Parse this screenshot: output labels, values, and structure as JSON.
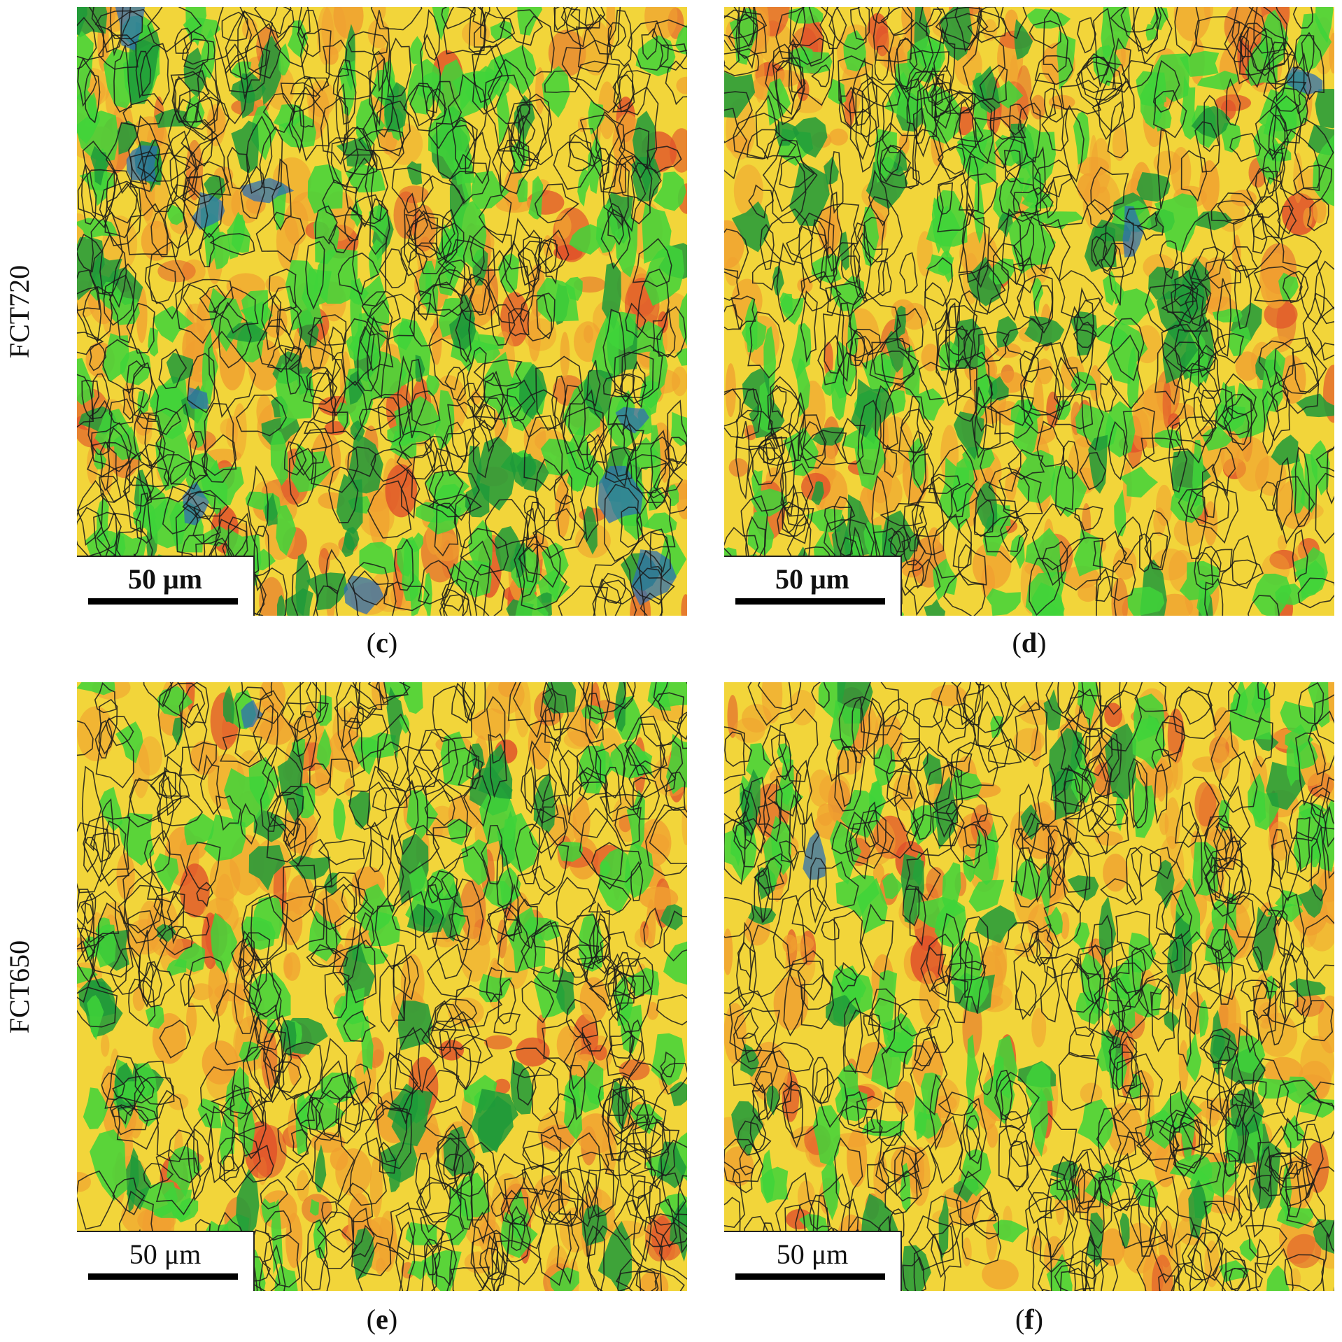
{
  "rows": [
    {
      "label": "FCT720"
    },
    {
      "label": "FCT650"
    }
  ],
  "panels": [
    {
      "letter": "c",
      "scale": "50 μm",
      "bold_scale": true,
      "seed": 11,
      "green_share": 0.46,
      "blue_spots": 10
    },
    {
      "letter": "d",
      "scale": "50 μm",
      "bold_scale": true,
      "seed": 23,
      "green_share": 0.36,
      "blue_spots": 2
    },
    {
      "letter": "e",
      "scale": "50 μm",
      "bold_scale": false,
      "seed": 37,
      "green_share": 0.3,
      "blue_spots": 1
    },
    {
      "letter": "f",
      "scale": "50 μm",
      "bold_scale": false,
      "seed": 53,
      "green_share": 0.3,
      "blue_spots": 1
    }
  ],
  "colors": {
    "yellow": "#f2d53a",
    "orange": "#f0a030",
    "red": "#e0502a",
    "green": "#3fd43a",
    "dark_green": "#1f9a3a",
    "blue": "#2f6fb0",
    "boundary": "#1a1a1a"
  }
}
